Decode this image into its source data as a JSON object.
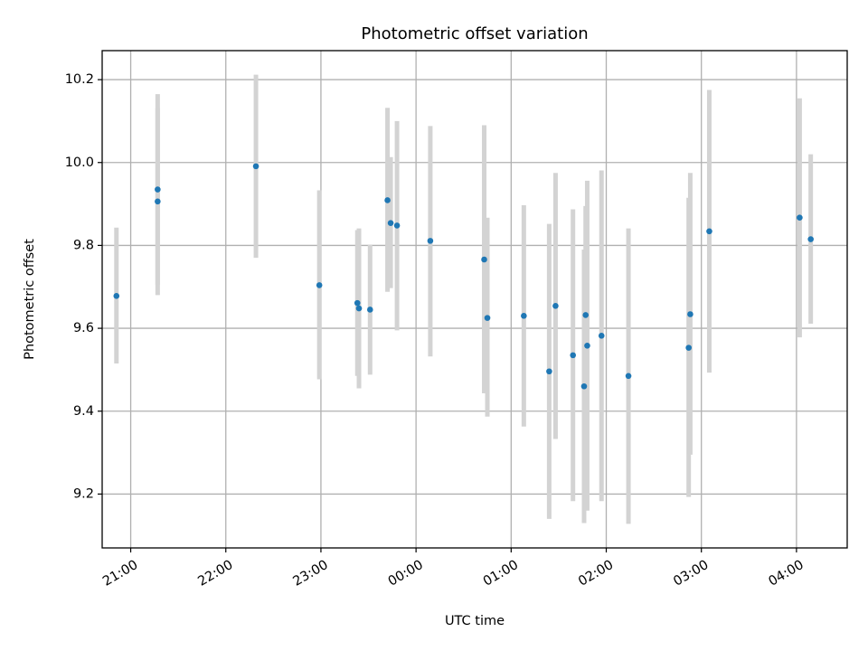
{
  "chart_data": {
    "type": "scatter",
    "title": "Photometric offset variation",
    "xlabel": "UTC time",
    "ylabel": "Photometric offset",
    "x_axis_kind": "time",
    "xlim": [
      "20:42",
      "04:32"
    ],
    "ylim": [
      9.07,
      10.27
    ],
    "grid": true,
    "legend": "none",
    "x_ticks": [
      "21:00",
      "22:00",
      "23:00",
      "00:00",
      "01:00",
      "02:00",
      "03:00",
      "04:00"
    ],
    "y_ticks": [
      9.2,
      9.4,
      9.6,
      9.8,
      10.0,
      10.2
    ],
    "y_tick_labels": [
      "9.2",
      "9.4",
      "9.6",
      "9.8",
      "10.0",
      "10.2"
    ],
    "colors": {
      "point": "#1f77b4",
      "errorbar": "#d3d3d3",
      "grid": "#b0b0b0"
    },
    "points": [
      {
        "x": "20:51",
        "y": 9.678,
        "ylo": 9.515,
        "yhi": 9.843
      },
      {
        "x": "21:17",
        "y": 9.935,
        "ylo": 9.705,
        "yhi": 10.165
      },
      {
        "x": "21:17",
        "y": 9.906,
        "ylo": 9.68,
        "yhi": 10.132
      },
      {
        "x": "22:19",
        "y": 9.991,
        "ylo": 9.77,
        "yhi": 10.212
      },
      {
        "x": "22:59",
        "y": 9.704,
        "ylo": 9.477,
        "yhi": 9.933
      },
      {
        "x": "23:23",
        "y": 9.661,
        "ylo": 9.485,
        "yhi": 9.837
      },
      {
        "x": "23:24",
        "y": 9.648,
        "ylo": 9.455,
        "yhi": 9.841
      },
      {
        "x": "23:31",
        "y": 9.645,
        "ylo": 9.488,
        "yhi": 9.802
      },
      {
        "x": "23:42",
        "y": 9.909,
        "ylo": 9.688,
        "yhi": 10.132
      },
      {
        "x": "23:44",
        "y": 9.854,
        "ylo": 9.697,
        "yhi": 10.013
      },
      {
        "x": "23:48",
        "y": 9.848,
        "ylo": 9.595,
        "yhi": 10.1
      },
      {
        "x": "00:09",
        "y": 9.811,
        "ylo": 9.532,
        "yhi": 10.088
      },
      {
        "x": "00:43",
        "y": 9.766,
        "ylo": 9.443,
        "yhi": 10.09
      },
      {
        "x": "00:45",
        "y": 9.625,
        "ylo": 9.387,
        "yhi": 9.867
      },
      {
        "x": "01:08",
        "y": 9.63,
        "ylo": 9.363,
        "yhi": 9.897
      },
      {
        "x": "01:24",
        "y": 9.496,
        "ylo": 9.14,
        "yhi": 9.852
      },
      {
        "x": "01:28",
        "y": 9.654,
        "ylo": 9.333,
        "yhi": 9.975
      },
      {
        "x": "01:39",
        "y": 9.535,
        "ylo": 9.183,
        "yhi": 9.887
      },
      {
        "x": "01:46",
        "y": 9.46,
        "ylo": 9.13,
        "yhi": 9.79
      },
      {
        "x": "01:47",
        "y": 9.632,
        "ylo": 9.37,
        "yhi": 9.895
      },
      {
        "x": "01:48",
        "y": 9.558,
        "ylo": 9.16,
        "yhi": 9.956
      },
      {
        "x": "01:57",
        "y": 9.582,
        "ylo": 9.183,
        "yhi": 9.981
      },
      {
        "x": "02:14",
        "y": 9.485,
        "ylo": 9.128,
        "yhi": 9.841
      },
      {
        "x": "02:52",
        "y": 9.553,
        "ylo": 9.193,
        "yhi": 9.915
      },
      {
        "x": "02:53",
        "y": 9.634,
        "ylo": 9.295,
        "yhi": 9.975
      },
      {
        "x": "03:05",
        "y": 9.834,
        "ylo": 9.493,
        "yhi": 10.175
      },
      {
        "x": "04:02",
        "y": 9.867,
        "ylo": 9.578,
        "yhi": 10.155
      },
      {
        "x": "04:09",
        "y": 9.815,
        "ylo": 9.611,
        "yhi": 10.02
      }
    ]
  }
}
